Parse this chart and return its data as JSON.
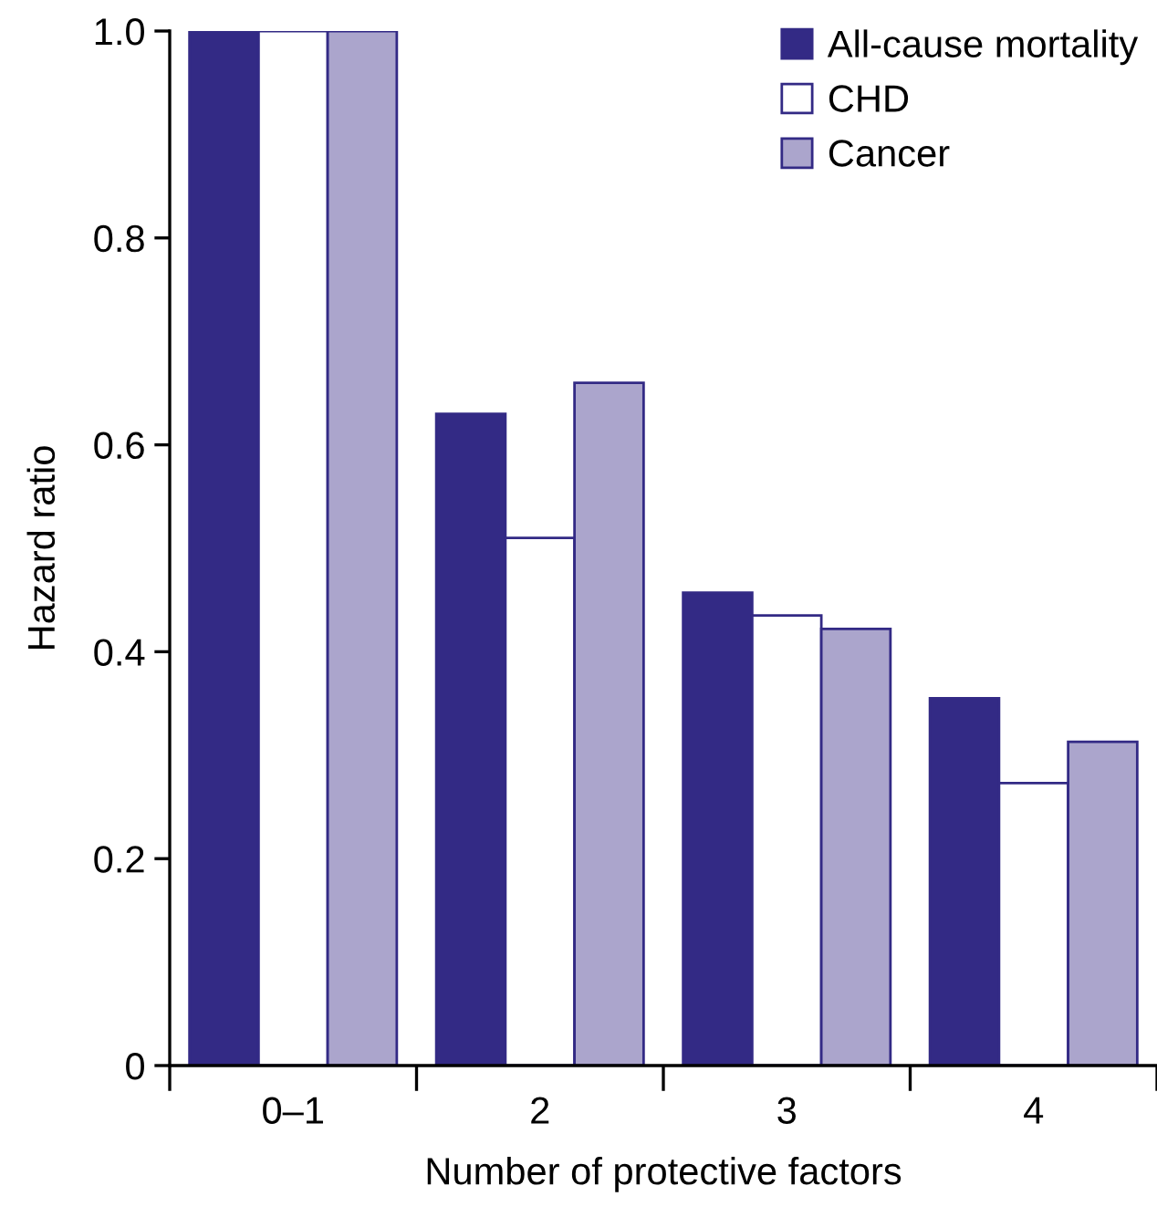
{
  "chart_data": {
    "type": "bar",
    "xlabel": "Number of protective factors",
    "ylabel": "Hazard ratio",
    "categories": [
      "0–1",
      "2",
      "3",
      "4"
    ],
    "series": [
      {
        "name": "All-cause mortality",
        "color": "#332a85",
        "values": [
          1.0,
          0.63,
          0.457,
          0.355
        ]
      },
      {
        "name": "CHD",
        "color": "#ffffff",
        "values": [
          1.0,
          0.51,
          0.435,
          0.273
        ]
      },
      {
        "name": "Cancer",
        "color": "#aba5cc",
        "values": [
          1.0,
          0.66,
          0.422,
          0.313
        ]
      }
    ],
    "ylim": [
      0,
      1.0
    ],
    "yticks": [
      0,
      {
        "value": 0.2,
        "label": "0.2"
      },
      {
        "value": 0.4,
        "label": "0.4"
      },
      {
        "value": 0.6,
        "label": "0.6"
      },
      {
        "value": 0.8,
        "label": "0.8"
      },
      {
        "value": 1,
        "label": "1.0"
      }
    ],
    "grid": false,
    "legend": "top right"
  }
}
